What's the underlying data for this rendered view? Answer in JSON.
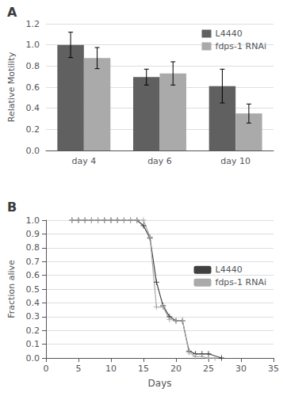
{
  "chart_data": [
    {
      "type": "bar",
      "title": "A",
      "categories": [
        "day 4",
        "day 6",
        "day 10"
      ],
      "series": [
        {
          "name": "L4440",
          "color": "#606060",
          "values": [
            1.0,
            0.695,
            0.61
          ],
          "errors": [
            0.12,
            0.075,
            0.16
          ]
        },
        {
          "name": "fdps-1 RNAi",
          "color": "#aaaaaa",
          "values": [
            0.875,
            0.73,
            0.35
          ],
          "errors": [
            0.1,
            0.11,
            0.09
          ]
        }
      ],
      "ylabel": "Relative Motility",
      "ylim": [
        0,
        1.2
      ],
      "yticks": [
        {
          "value": 0,
          "label": "0.0"
        },
        0.2,
        0.4,
        0.6,
        0.8,
        {
          "value": 1.0,
          "label": "1.0"
        },
        1.2
      ],
      "grid": true,
      "legend": "upper right"
    },
    {
      "type": "line",
      "title": "B",
      "series": [
        {
          "name": "L4440",
          "color": "#404040",
          "marker": "plus",
          "x": [
            4,
            5,
            6,
            7,
            8,
            9,
            10,
            11,
            12,
            13,
            14,
            15,
            16,
            17,
            18,
            19,
            20,
            21,
            22,
            23,
            24,
            25,
            27
          ],
          "values": [
            1.0,
            1.0,
            1.0,
            1.0,
            1.0,
            1.0,
            1.0,
            1.0,
            1.0,
            1.0,
            1.0,
            0.96,
            0.87,
            0.55,
            0.38,
            0.3,
            0.27,
            0.27,
            0.05,
            0.03,
            0.03,
            0.03,
            0.0
          ]
        },
        {
          "name": "fdps-1 RNAi",
          "color": "#aaaaaa",
          "marker": "plus",
          "x": [
            4,
            5,
            6,
            7,
            8,
            9,
            10,
            11,
            12,
            13,
            14,
            15,
            16,
            17,
            18,
            19,
            20,
            21,
            22,
            23,
            24,
            25,
            26
          ],
          "values": [
            1.0,
            1.0,
            1.0,
            1.0,
            1.0,
            1.0,
            1.0,
            1.0,
            1.0,
            1.0,
            1.0,
            1.0,
            0.88,
            0.37,
            0.37,
            0.28,
            0.27,
            0.27,
            0.04,
            0.01,
            0.01,
            0.0,
            0.0
          ]
        }
      ],
      "xlabel": "Days",
      "ylabel": "Fraction alive",
      "xlim": [
        0,
        35
      ],
      "xticks": [
        0,
        5,
        10,
        15,
        20,
        25,
        30,
        35
      ],
      "ylim": [
        0,
        1.0
      ],
      "yticks": [
        {
          "value": 0,
          "label": "0.0"
        },
        0.1,
        0.2,
        0.3,
        0.4,
        0.5,
        0.6,
        0.7,
        0.8,
        0.9,
        {
          "value": 1.0,
          "label": "1.0"
        }
      ],
      "grid": true,
      "legend": "center right"
    }
  ]
}
